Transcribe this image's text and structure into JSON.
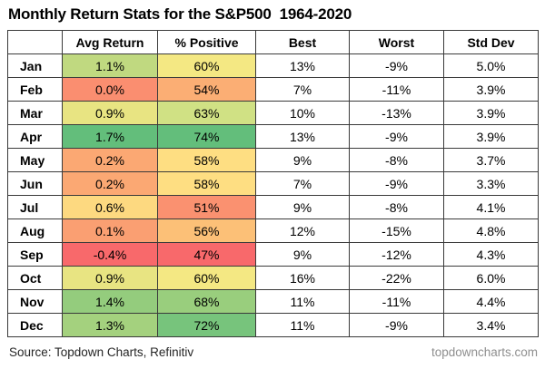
{
  "title": "Monthly Return Stats for the S&P500  1964-2020",
  "table": {
    "columns": [
      "",
      "Avg Return",
      "% Positive",
      "Best",
      "Worst",
      "Std Dev"
    ],
    "rows": [
      {
        "month": "Jan",
        "avg": "1.1%",
        "pos": "60%",
        "best": "13%",
        "worst": "-9%",
        "std": "5.0%",
        "avg_bg": "#c0d980",
        "pos_bg": "#f4e883"
      },
      {
        "month": "Feb",
        "avg": "0.0%",
        "pos": "54%",
        "best": "7%",
        "worst": "-11%",
        "std": "3.9%",
        "avg_bg": "#fa8e70",
        "pos_bg": "#fbae74"
      },
      {
        "month": "Mar",
        "avg": "0.9%",
        "pos": "63%",
        "best": "10%",
        "worst": "-13%",
        "std": "3.9%",
        "avg_bg": "#e8e482",
        "pos_bg": "#d0e184"
      },
      {
        "month": "Apr",
        "avg": "1.7%",
        "pos": "74%",
        "best": "13%",
        "worst": "-9%",
        "std": "3.9%",
        "avg_bg": "#63be7b",
        "pos_bg": "#63be7b"
      },
      {
        "month": "May",
        "avg": "0.2%",
        "pos": "58%",
        "best": "9%",
        "worst": "-8%",
        "std": "3.7%",
        "avg_bg": "#fba873",
        "pos_bg": "#fede82"
      },
      {
        "month": "Jun",
        "avg": "0.2%",
        "pos": "58%",
        "best": "7%",
        "worst": "-9%",
        "std": "3.3%",
        "avg_bg": "#fba873",
        "pos_bg": "#fede82"
      },
      {
        "month": "Jul",
        "avg": "0.6%",
        "pos": "51%",
        "best": "9%",
        "worst": "-8%",
        "std": "4.1%",
        "avg_bg": "#fdd980",
        "pos_bg": "#fa9170"
      },
      {
        "month": "Aug",
        "avg": "0.1%",
        "pos": "56%",
        "best": "12%",
        "worst": "-15%",
        "std": "4.8%",
        "avg_bg": "#fa9f72",
        "pos_bg": "#fcc077"
      },
      {
        "month": "Sep",
        "avg": "-0.4%",
        "pos": "47%",
        "best": "9%",
        "worst": "-12%",
        "std": "4.3%",
        "avg_bg": "#f8696b",
        "pos_bg": "#f8696b"
      },
      {
        "month": "Oct",
        "avg": "0.9%",
        "pos": "60%",
        "best": "16%",
        "worst": "-22%",
        "std": "6.0%",
        "avg_bg": "#e8e482",
        "pos_bg": "#f4e883"
      },
      {
        "month": "Nov",
        "avg": "1.4%",
        "pos": "68%",
        "best": "11%",
        "worst": "-11%",
        "std": "4.4%",
        "avg_bg": "#94cc7d",
        "pos_bg": "#99ce7d"
      },
      {
        "month": "Dec",
        "avg": "1.3%",
        "pos": "72%",
        "best": "11%",
        "worst": "-9%",
        "std": "3.4%",
        "avg_bg": "#a4d17e",
        "pos_bg": "#77c47c"
      }
    ]
  },
  "footer": {
    "source": "Source: Topdown Charts, Refinitiv",
    "site": "topdowncharts.com"
  },
  "colors": {
    "scale_min_red": "#f8696b",
    "scale_mid_yellow": "#f4e883",
    "scale_max_green": "#63be7b",
    "grid": "#3a3a3a"
  },
  "chart_data": {
    "type": "table",
    "title": "Monthly Return Stats for the S&P500  1964-2020",
    "categories": [
      "Jan",
      "Feb",
      "Mar",
      "Apr",
      "May",
      "Jun",
      "Jul",
      "Aug",
      "Sep",
      "Oct",
      "Nov",
      "Dec"
    ],
    "series": [
      {
        "name": "Avg Return",
        "unit": "%",
        "values": [
          1.1,
          0.0,
          0.9,
          1.7,
          0.2,
          0.2,
          0.6,
          0.1,
          -0.4,
          0.9,
          1.4,
          1.3
        ]
      },
      {
        "name": "% Positive",
        "unit": "%",
        "values": [
          60,
          54,
          63,
          74,
          58,
          58,
          51,
          56,
          47,
          60,
          68,
          72
        ]
      },
      {
        "name": "Best",
        "unit": "%",
        "values": [
          13,
          7,
          10,
          13,
          9,
          7,
          9,
          12,
          9,
          16,
          11,
          11
        ]
      },
      {
        "name": "Worst",
        "unit": "%",
        "values": [
          -9,
          -11,
          -13,
          -9,
          -8,
          -9,
          -8,
          -15,
          -12,
          -22,
          -11,
          -9
        ]
      },
      {
        "name": "Std Dev",
        "unit": "%",
        "values": [
          5.0,
          3.9,
          3.9,
          3.9,
          3.7,
          3.3,
          4.1,
          4.8,
          4.3,
          6.0,
          4.4,
          3.4
        ]
      }
    ],
    "layout": "data table; Avg Return and % Positive columns shaded with red-yellow-green conditional color scale"
  }
}
